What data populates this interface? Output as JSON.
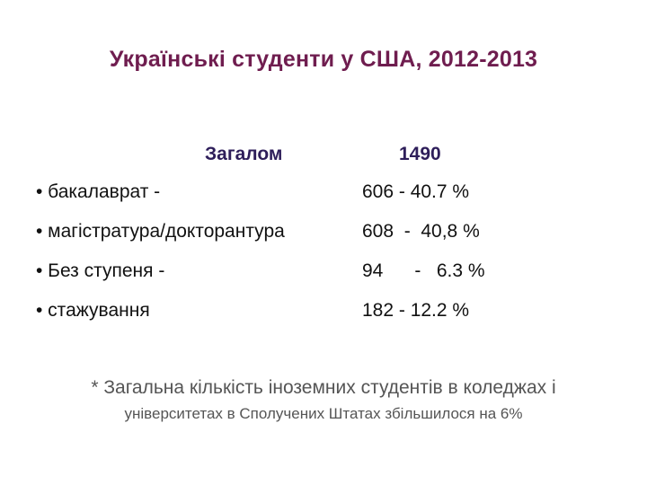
{
  "slide": {
    "title": "Українські студенти у США, 2012-2013",
    "total": {
      "label": "Загалом",
      "value": "1490"
    },
    "rows": [
      {
        "label": "• бакалаврат -",
        "value": "606 - 40.7 %"
      },
      {
        "label": "• магістратура/докторантура",
        "value": "608  -  40,8 %"
      },
      {
        "label": "• Без ступеня -",
        "value": "94      -   6.3 %"
      },
      {
        "label": "• стажування",
        "value": "182 - 12.2 %"
      }
    ],
    "note": {
      "line1": "* Загальна кількість іноземних студентів в коледжах і",
      "line2": "університетах в Сполучених Штатах збільшилося на 6%"
    },
    "colors": {
      "title": "#6f1d4f",
      "total": "#2e1e5a",
      "note": "#555555"
    }
  }
}
